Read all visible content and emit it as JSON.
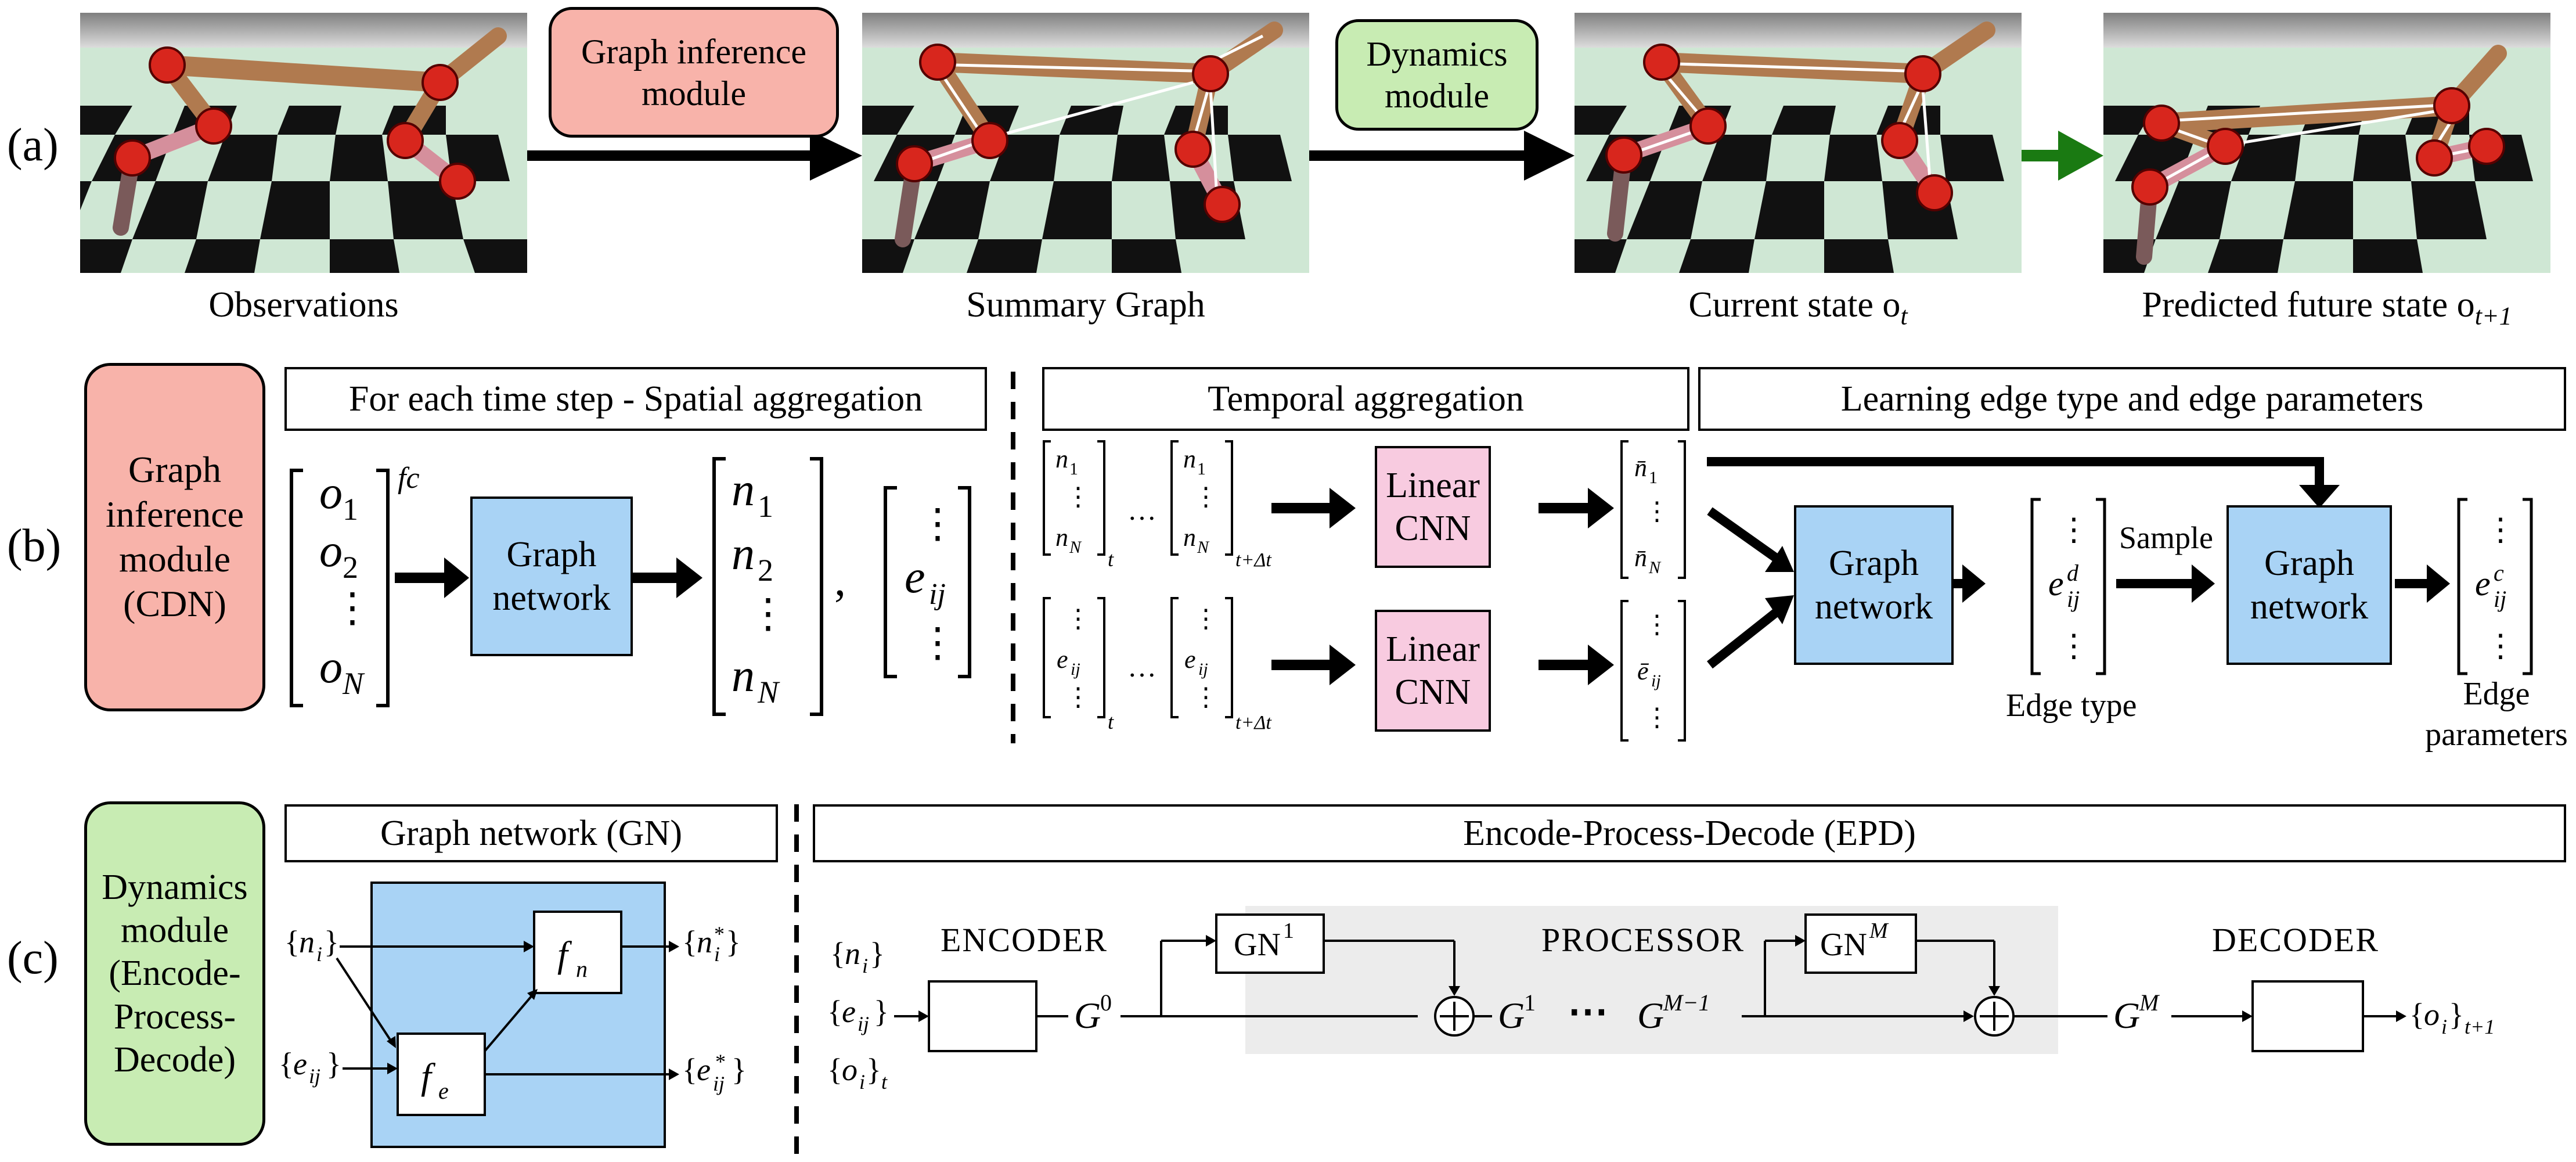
{
  "panel_labels": {
    "a": "(a)",
    "b": "(b)",
    "c": "(c)"
  },
  "row_a": {
    "captions": {
      "observations": "Observations",
      "summary_graph": "Summary Graph",
      "current_state": "Current state o",
      "current_state_sub": "t",
      "predicted": "Predicted future state o",
      "predicted_sub": "t+1"
    },
    "graph_inference_label": [
      "Graph inference",
      "module"
    ],
    "dynamics_label": [
      "Dynamics",
      "module"
    ]
  },
  "row_b": {
    "module_label": [
      "Graph",
      "inference",
      "module",
      "(CDN)"
    ],
    "spatial_title": "For each time step - Spatial aggregation",
    "temporal_title": "Temporal aggregation",
    "learning_title": "Learning edge type and edge parameters",
    "fc_label": "fc",
    "graph_network_label": [
      "Graph",
      "network"
    ],
    "linear_cnn_label": [
      "Linear",
      "CNN"
    ],
    "sample_label": "Sample",
    "edge_type_label": "Edge type",
    "edge_params_label": [
      "Edge",
      "parameters"
    ]
  },
  "row_c": {
    "module_label": [
      "Dynamics",
      "module",
      "(Encode-",
      "Process-",
      "Decode)"
    ],
    "gn_title": "Graph network (GN)",
    "epd_title": "Encode-Process-Decode (EPD)",
    "encoder_label": "ENCODER",
    "processor_label": "PROCESSOR",
    "decoder_label": "DECODER"
  },
  "colors": {
    "red_module": "#f8b3aa",
    "green_module": "#c8ecb3",
    "blue_box": "#a9d3f5",
    "pink_box": "#f8cbe0",
    "green_arrow": "#1a7a12",
    "processor_bg": "#ececec"
  }
}
